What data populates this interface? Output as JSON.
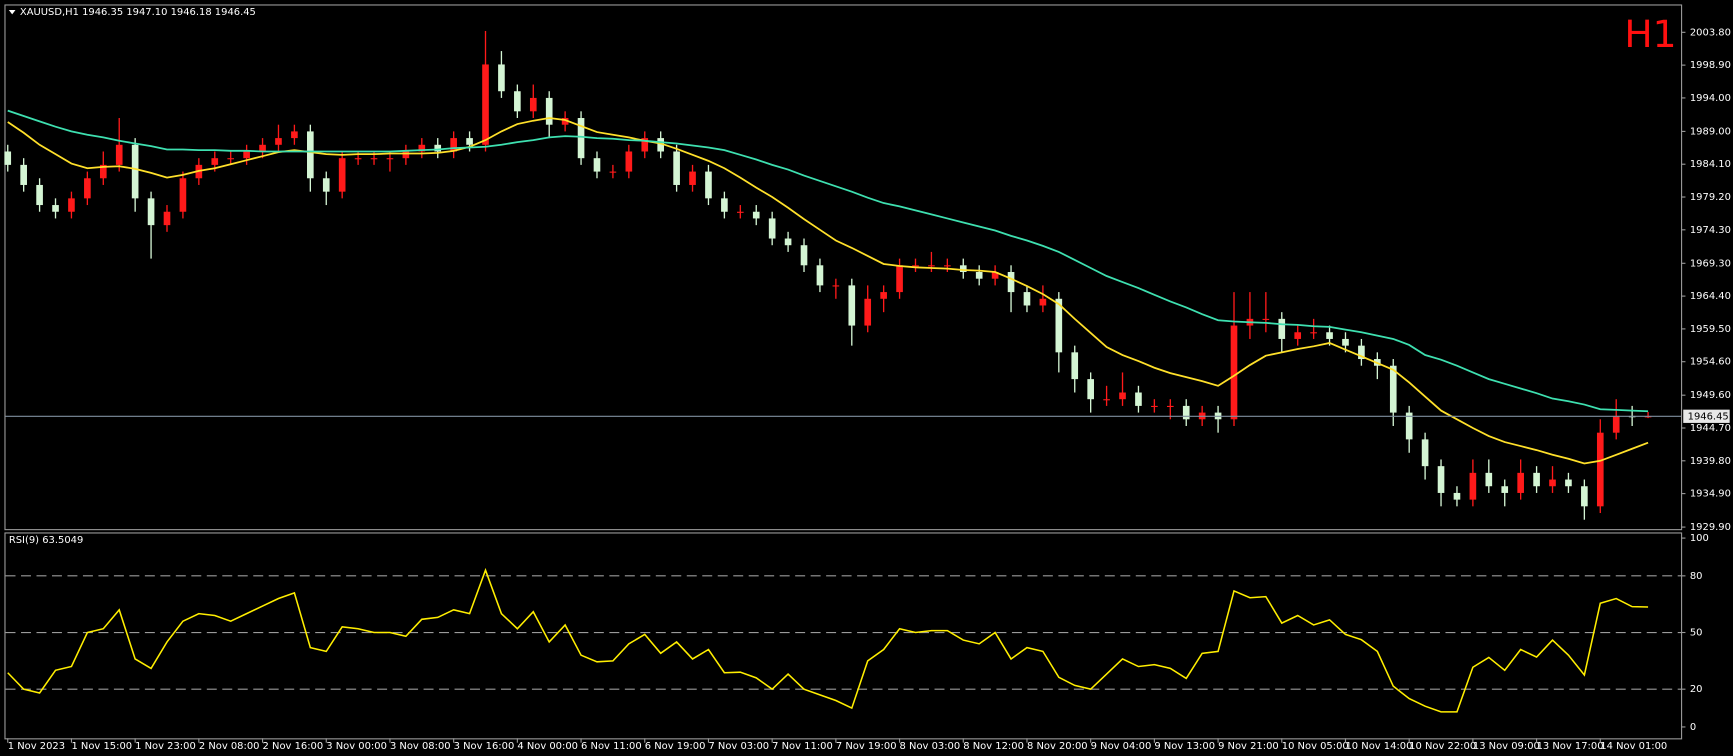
{
  "chart_data": [
    {
      "type": "candlestick",
      "title": "XAUUSD,H1  1946.35 1947.10 1946.18 1946.45",
      "annotation": "H1",
      "up_color": "#ff1a1a",
      "down_color": "#d4f5d4",
      "categories": [
        "1 Nov 2023",
        null,
        null,
        null,
        "1 Nov 15:00",
        null,
        null,
        null,
        "1 Nov 23:00",
        null,
        null,
        null,
        "2 Nov 08:00",
        null,
        null,
        null,
        "2 Nov 16:00",
        null,
        null,
        null,
        "3 Nov 00:00",
        null,
        null,
        null,
        "3 Nov 08:00",
        null,
        null,
        null,
        "3 Nov 16:00",
        null,
        null,
        null,
        "4 Nov 00:00",
        null,
        null,
        null,
        "6 Nov 11:00",
        null,
        null,
        null,
        "6 Nov 19:00",
        null,
        null,
        null,
        "7 Nov 03:00",
        null,
        null,
        null,
        "7 Nov 11:00",
        null,
        null,
        null,
        "7 Nov 19:00",
        null,
        null,
        null,
        "8 Nov 03:00",
        null,
        null,
        null,
        "8 Nov 12:00",
        null,
        null,
        null,
        "8 Nov 20:00",
        null,
        null,
        null,
        "9 Nov 04:00",
        null,
        null,
        null,
        "9 Nov 13:00",
        null,
        null,
        null,
        "9 Nov 21:00",
        null,
        null,
        null,
        "10 Nov 05:00",
        null,
        null,
        null,
        "10 Nov 14:00",
        null,
        null,
        null,
        "10 Nov 22:00",
        null,
        null,
        null,
        "13 Nov 09:00",
        null,
        null,
        null,
        "13 Nov 17:00",
        null,
        null,
        null,
        "14 Nov 01:00",
        null,
        null,
        null
      ],
      "candles": [
        [
          1986,
          1987,
          1983,
          1984
        ],
        [
          1984,
          1985,
          1980,
          1981
        ],
        [
          1981,
          1982,
          1977,
          1978
        ],
        [
          1978,
          1979,
          1976,
          1977
        ],
        [
          1977,
          1980,
          1976,
          1979
        ],
        [
          1979,
          1983,
          1978,
          1982
        ],
        [
          1982,
          1986,
          1981,
          1984
        ],
        [
          1984,
          1991,
          1983,
          1987
        ],
        [
          1987,
          1988,
          1977,
          1979
        ],
        [
          1979,
          1980,
          1970,
          1975
        ],
        [
          1975,
          1978,
          1974,
          1977
        ],
        [
          1977,
          1983,
          1976,
          1982
        ],
        [
          1982,
          1985,
          1981,
          1984
        ],
        [
          1984,
          1986,
          1983,
          1985
        ],
        [
          1985,
          1986,
          1984,
          1985
        ],
        [
          1985,
          1987,
          1984,
          1986
        ],
        [
          1986,
          1988,
          1985,
          1987
        ],
        [
          1987,
          1990,
          1986,
          1988
        ],
        [
          1988,
          1990,
          1987,
          1989
        ],
        [
          1989,
          1990,
          1980,
          1982
        ],
        [
          1982,
          1983,
          1978,
          1980
        ],
        [
          1980,
          1986,
          1979,
          1985
        ],
        [
          1985,
          1986,
          1984,
          1985
        ],
        [
          1985,
          1986,
          1984,
          1985
        ],
        [
          1985,
          1986,
          1983,
          1985
        ],
        [
          1985,
          1987,
          1984,
          1986
        ],
        [
          1986,
          1988,
          1985,
          1987
        ],
        [
          1987,
          1988,
          1985,
          1986
        ],
        [
          1986,
          1989,
          1985,
          1988
        ],
        [
          1988,
          1989,
          1986,
          1987
        ],
        [
          1987,
          2004,
          1986,
          1999
        ],
        [
          1999,
          2001,
          1994,
          1995
        ],
        [
          1995,
          1996,
          1991,
          1992
        ],
        [
          1992,
          1996,
          1991,
          1994
        ],
        [
          1994,
          1995,
          1988,
          1990
        ],
        [
          1990,
          1992,
          1989,
          1991
        ],
        [
          1991,
          1992,
          1984,
          1985
        ],
        [
          1985,
          1986,
          1982,
          1983
        ],
        [
          1983,
          1984,
          1982,
          1983
        ],
        [
          1983,
          1987,
          1982,
          1986
        ],
        [
          1986,
          1989,
          1985,
          1988
        ],
        [
          1988,
          1989,
          1985,
          1986
        ],
        [
          1986,
          1987,
          1980,
          1981
        ],
        [
          1981,
          1984,
          1980,
          1983
        ],
        [
          1983,
          1984,
          1978,
          1979
        ],
        [
          1979,
          1980,
          1976,
          1977
        ],
        [
          1977,
          1978,
          1976,
          1977
        ],
        [
          1977,
          1978,
          1975,
          1976
        ],
        [
          1976,
          1977,
          1972,
          1973
        ],
        [
          1973,
          1974,
          1971,
          1972
        ],
        [
          1972,
          1973,
          1968,
          1969
        ],
        [
          1969,
          1970,
          1965,
          1966
        ],
        [
          1966,
          1967,
          1964,
          1966
        ],
        [
          1966,
          1967,
          1957,
          1960
        ],
        [
          1960,
          1966,
          1959,
          1964
        ],
        [
          1964,
          1966,
          1962,
          1965
        ],
        [
          1965,
          1970,
          1964,
          1969
        ],
        [
          1969,
          1970,
          1968,
          1969
        ],
        [
          1969,
          1971,
          1968,
          1969
        ],
        [
          1969,
          1970,
          1968,
          1969
        ],
        [
          1969,
          1970,
          1967,
          1968
        ],
        [
          1968,
          1969,
          1966,
          1967
        ],
        [
          1967,
          1969,
          1966,
          1968
        ],
        [
          1968,
          1969,
          1962,
          1965
        ],
        [
          1965,
          1966,
          1962,
          1963
        ],
        [
          1963,
          1966,
          1962,
          1964
        ],
        [
          1964,
          1965,
          1953,
          1956
        ],
        [
          1956,
          1957,
          1950,
          1952
        ],
        [
          1952,
          1953,
          1947,
          1949
        ],
        [
          1949,
          1951,
          1948,
          1949
        ],
        [
          1949,
          1953,
          1948,
          1950
        ],
        [
          1950,
          1951,
          1947,
          1948
        ],
        [
          1948,
          1949,
          1947,
          1948
        ],
        [
          1948,
          1949,
          1946,
          1948
        ],
        [
          1948,
          1949,
          1945,
          1946
        ],
        [
          1946,
          1948,
          1945,
          1947
        ],
        [
          1947,
          1948,
          1944,
          1946
        ],
        [
          1946,
          1965,
          1945,
          1960
        ],
        [
          1960,
          1965,
          1958,
          1961
        ],
        [
          1961,
          1965,
          1959,
          1961
        ],
        [
          1961,
          1962,
          1956,
          1958
        ],
        [
          1958,
          1960,
          1957,
          1959
        ],
        [
          1959,
          1961,
          1958,
          1959
        ],
        [
          1959,
          1960,
          1957,
          1958
        ],
        [
          1958,
          1959,
          1956,
          1957
        ],
        [
          1957,
          1958,
          1954,
          1955
        ],
        [
          1955,
          1956,
          1952,
          1954
        ],
        [
          1954,
          1955,
          1945,
          1947
        ],
        [
          1947,
          1948,
          1941,
          1943
        ],
        [
          1943,
          1944,
          1937,
          1939
        ],
        [
          1939,
          1940,
          1933,
          1935
        ],
        [
          1935,
          1936,
          1933,
          1934
        ],
        [
          1934,
          1940,
          1933,
          1938
        ],
        [
          1938,
          1940,
          1935,
          1936
        ],
        [
          1936,
          1937,
          1933,
          1935
        ],
        [
          1935,
          1940,
          1934,
          1938
        ],
        [
          1938,
          1939,
          1935,
          1936
        ],
        [
          1936,
          1939,
          1935,
          1937
        ],
        [
          1937,
          1938,
          1935,
          1936
        ],
        [
          1936,
          1937,
          1931,
          1933
        ],
        [
          1933,
          1946,
          1932,
          1944
        ],
        [
          1944,
          1949,
          1943,
          1946.5
        ],
        [
          1946.5,
          1948,
          1945,
          1946.3
        ],
        [
          1946.3,
          1947.1,
          1946.18,
          1946.45
        ]
      ],
      "series": [
        {
          "color": "#ffe02a",
          "values": [
            1990.4,
            1988.8,
            1987.0,
            1985.6,
            1984.2,
            1983.5,
            1983.7,
            1983.8,
            1983.4,
            1982.8,
            1982.1,
            1982.5,
            1983.1,
            1983.5,
            1984.1,
            1984.7,
            1985.3,
            1985.9,
            1986.2,
            1985.9,
            1985.6,
            1985.5,
            1985.6,
            1985.6,
            1985.7,
            1985.7,
            1985.7,
            1985.8,
            1986.1,
            1986.7,
            1987.7,
            1989.0,
            1990.1,
            1990.6,
            1991.0,
            1990.7,
            1989.8,
            1988.9,
            1988.5,
            1988.1,
            1987.6,
            1987.2,
            1986.4,
            1985.5,
            1984.6,
            1983.5,
            1982.1,
            1980.6,
            1979.2,
            1977.6,
            1975.9,
            1974.3,
            1972.7,
            1971.6,
            1970.4,
            1969.2,
            1968.9,
            1968.7,
            1968.6,
            1968.5,
            1968.3,
            1968.2,
            1968.0,
            1967.0,
            1965.9,
            1964.7,
            1963.2,
            1961.0,
            1958.9,
            1956.8,
            1955.6,
            1954.7,
            1953.7,
            1952.9,
            1952.3,
            1951.7,
            1951.0,
            1952.5,
            1954.1,
            1955.5,
            1956.0,
            1956.5,
            1956.9,
            1957.4,
            1956.4,
            1955.4,
            1954.4,
            1953.4,
            1951.5,
            1949.4,
            1947.3,
            1946.0,
            1944.7,
            1943.5,
            1942.6,
            1942.0,
            1941.4,
            1940.7,
            1940.1,
            1939.4,
            1939.8,
            1940.7,
            1941.6,
            1942.5
          ]
        },
        {
          "color": "#3ee0b0",
          "values": [
            1992.1,
            1991.3,
            1990.5,
            1989.7,
            1989.0,
            1988.5,
            1988.1,
            1987.6,
            1987.2,
            1986.8,
            1986.3,
            1986.3,
            1986.2,
            1986.2,
            1986.1,
            1986.1,
            1986.0,
            1986.0,
            1986.0,
            1986.0,
            1986.0,
            1986.0,
            1986.0,
            1986.0,
            1986.0,
            1986.1,
            1986.2,
            1986.3,
            1986.5,
            1986.6,
            1986.7,
            1987.0,
            1987.4,
            1987.7,
            1988.1,
            1988.3,
            1988.2,
            1988.0,
            1987.9,
            1987.7,
            1987.6,
            1987.4,
            1987.2,
            1986.9,
            1986.6,
            1986.2,
            1985.5,
            1984.8,
            1984.0,
            1983.3,
            1982.4,
            1981.6,
            1980.8,
            1980.0,
            1979.1,
            1978.3,
            1977.8,
            1977.2,
            1976.6,
            1976.0,
            1975.4,
            1974.8,
            1974.2,
            1973.4,
            1972.7,
            1971.9,
            1971.0,
            1969.8,
            1968.6,
            1967.4,
            1966.5,
            1965.6,
            1964.6,
            1963.6,
            1962.7,
            1961.7,
            1960.8,
            1960.6,
            1960.5,
            1960.4,
            1960.2,
            1960.1,
            1959.9,
            1959.8,
            1959.4,
            1959.0,
            1958.5,
            1958.0,
            1957.1,
            1955.6,
            1954.9,
            1954.0,
            1953.0,
            1952.0,
            1951.3,
            1950.6,
            1949.9,
            1949.1,
            1948.7,
            1948.2,
            1947.5,
            1947.4,
            1947.3,
            1947.2
          ]
        }
      ],
      "current_price": {
        "value": 1946.45,
        "label": "1946.45"
      },
      "ylim": [
        1929.6,
        2007.8
      ],
      "yticks": [
        {
          "value": 2003.8,
          "label": "2003.80"
        },
        {
          "value": 1998.9,
          "label": "1998.90"
        },
        {
          "value": 1994,
          "label": "1994.00"
        },
        {
          "value": 1989,
          "label": "1989.00"
        },
        {
          "value": 1984.1,
          "label": "1984.10"
        },
        {
          "value": 1979.2,
          "label": "1979.20"
        },
        {
          "value": 1974.3,
          "label": "1974.30"
        },
        {
          "value": 1969.3,
          "label": "1969.30"
        },
        {
          "value": 1964.4,
          "label": "1964.40"
        },
        {
          "value": 1959.5,
          "label": "1959.50"
        },
        {
          "value": 1954.6,
          "label": "1954.60"
        },
        {
          "value": 1949.6,
          "label": "1949.60"
        },
        {
          "value": 1944.7,
          "label": "1944.70"
        },
        {
          "value": 1939.8,
          "label": "1939.80"
        },
        {
          "value": 1934.9,
          "label": "1934.90"
        },
        {
          "value": 1929.9,
          "label": "1929.90"
        }
      ]
    },
    {
      "type": "line",
      "title": "RSI(9) 63.5049",
      "color": "#ffee00",
      "values": [
        28.7,
        20,
        18,
        30,
        32,
        50,
        52,
        62,
        36,
        31,
        45,
        56,
        60,
        59,
        56,
        60,
        64,
        68,
        71,
        42,
        40,
        53,
        52,
        50,
        50,
        48,
        57,
        58,
        62,
        60,
        83,
        60,
        52,
        61,
        45,
        54,
        38,
        34.5,
        35,
        44,
        49,
        39,
        45,
        36,
        41,
        28.7,
        29,
        26,
        20,
        28,
        20,
        17,
        14,
        10,
        35,
        41,
        52,
        50,
        51,
        51,
        46,
        44,
        50,
        36,
        42,
        40,
        26.3,
        22,
        20,
        28,
        36,
        32,
        33,
        31,
        25.7,
        39,
        40,
        72,
        68.4,
        69,
        55,
        59,
        54,
        56.7,
        49,
        46.2,
        40,
        21.6,
        15,
        11,
        8,
        8,
        31.6,
        36.8,
        30,
        41,
        37,
        46,
        38,
        27.5,
        65.5,
        68,
        63.7,
        63.5
      ],
      "levels": [
        20,
        50,
        80
      ],
      "ylim": [
        -6,
        103
      ],
      "yticks": [
        0,
        20,
        50,
        80,
        100
      ]
    }
  ]
}
